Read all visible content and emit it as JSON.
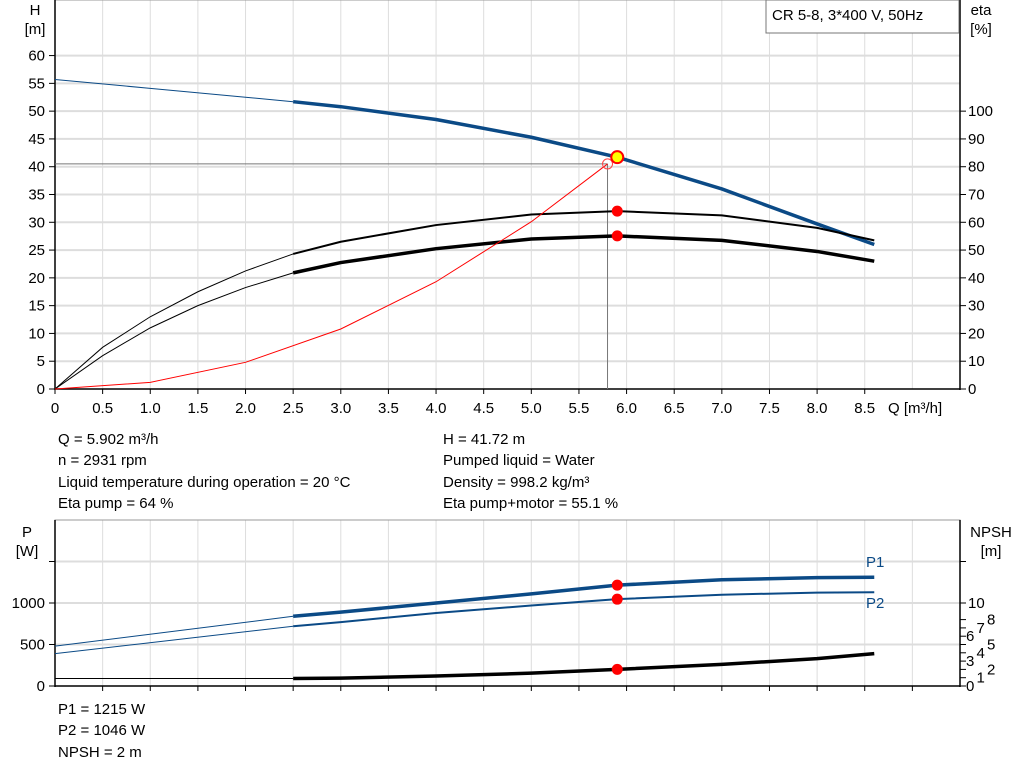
{
  "chart_data": [
    {
      "type": "line",
      "legend": "CR 5-8, 3*400 V, 50Hz",
      "x_axis": {
        "label": "Q [m³/h]",
        "range": [
          0,
          9.5
        ],
        "ticks": [
          0,
          0.5,
          1.0,
          1.5,
          2.0,
          2.5,
          3.0,
          3.5,
          4.0,
          4.5,
          5.0,
          5.5,
          6.0,
          6.5,
          7.0,
          7.5,
          8.0,
          8.5
        ],
        "tick_labels": [
          "0",
          "0.5",
          "1.0",
          "1.5",
          "2.0",
          "2.5",
          "3.0",
          "3.5",
          "4.0",
          "4.5",
          "5.0",
          "5.5",
          "6.0",
          "6.5",
          "7.0",
          "7.5",
          "8.0",
          "8.5"
        ]
      },
      "y_axis_left": {
        "label": "H",
        "unit": "[m]",
        "range": [
          0,
          70
        ],
        "ticks": [
          0,
          5,
          10,
          15,
          20,
          25,
          30,
          35,
          40,
          45,
          50,
          55,
          60
        ]
      },
      "y_axis_right": {
        "label": "eta",
        "unit": "[%]",
        "range": [
          0,
          140
        ],
        "ticks": [
          0,
          10,
          20,
          30,
          40,
          50,
          60,
          70,
          80,
          90,
          100
        ]
      },
      "grid": true,
      "series": [
        {
          "id": "H",
          "axis": "left",
          "color": "#0b4a86",
          "thin_until": 2.5,
          "x": [
            0,
            1,
            2,
            2.5,
            3,
            4,
            5,
            5.902,
            7,
            8,
            8.6
          ],
          "y": [
            55.7,
            54.1,
            52.5,
            51.7,
            50.8,
            48.5,
            45.3,
            41.72,
            36,
            29.7,
            26
          ]
        },
        {
          "id": "eta_pump",
          "axis": "right",
          "color": "#000000",
          "thin_until": 2.5,
          "x": [
            0,
            0.5,
            1,
            1.5,
            2,
            2.5,
            3,
            4,
            5,
            5.902,
            7,
            8,
            8.6
          ],
          "y": [
            0,
            15,
            26,
            35,
            42.5,
            48.6,
            53,
            59,
            62.8,
            64,
            62.5,
            58,
            53.5
          ]
        },
        {
          "id": "eta_pump_motor",
          "axis": "right",
          "color": "#000000",
          "thin_until": 2.5,
          "x": [
            0,
            0.5,
            1,
            1.5,
            2,
            2.5,
            3,
            4,
            5,
            5.902,
            7,
            8,
            8.6
          ],
          "y": [
            0,
            12,
            22,
            30,
            36.5,
            41.8,
            45.5,
            50.5,
            54,
            55.1,
            53.5,
            49.5,
            46
          ]
        },
        {
          "id": "system",
          "axis": "left",
          "color": "#ff0000",
          "x": [
            0,
            1,
            2,
            3,
            4,
            5,
            5.8
          ],
          "y": [
            0,
            1.2,
            4.8,
            10.8,
            19.3,
            30.1,
            40.5
          ]
        }
      ],
      "operating_point": {
        "Q": 5.902,
        "H": 41.72,
        "eta_pump": 64,
        "eta_pump_motor": 55.1
      },
      "system_point": {
        "Q": 5.8,
        "H": 40.5
      }
    },
    {
      "type": "line",
      "x_axis": {
        "range": [
          0,
          9.5
        ]
      },
      "y_axis_left": {
        "label": "P",
        "unit": "[W]",
        "range": [
          0,
          2000
        ],
        "ticks": [
          0,
          500,
          1000,
          1500
        ],
        "tick_labels": [
          "0",
          "500",
          "1000",
          ""
        ]
      },
      "y_axis_right": {
        "label": "NPSH",
        "unit": "[m]",
        "range": [
          0,
          20
        ],
        "ticks": [
          0,
          1,
          2,
          3,
          4,
          5,
          6,
          7,
          8,
          10,
          15
        ],
        "tick_labels": [
          "0",
          "1",
          "2",
          "3",
          "4",
          "5",
          "6",
          "7",
          "8",
          "10",
          ""
        ]
      },
      "grid": true,
      "series": [
        {
          "name": "P1",
          "axis": "left",
          "color": "#0b4a86",
          "thin_until": 2.5,
          "x": [
            0,
            2.5,
            3,
            4,
            5,
            5.902,
            7,
            8,
            8.6
          ],
          "y": [
            480,
            840,
            890,
            1000,
            1110,
            1215,
            1280,
            1305,
            1310
          ]
        },
        {
          "name": "P2",
          "axis": "left",
          "color": "#0b4a86",
          "thin_until": 2.5,
          "x": [
            0,
            2.5,
            3,
            4,
            5,
            5.902,
            7,
            8,
            8.6
          ],
          "y": [
            390,
            720,
            770,
            880,
            970,
            1046,
            1100,
            1125,
            1130
          ]
        },
        {
          "id": "NPSH",
          "axis": "right",
          "color": "#000000",
          "thin_until": 2.5,
          "x": [
            0,
            2.5,
            3,
            4,
            5,
            5.902,
            7,
            8,
            8.6
          ],
          "y": [
            0.9,
            0.9,
            0.95,
            1.2,
            1.55,
            2,
            2.6,
            3.3,
            3.9
          ]
        }
      ],
      "operating_point": {
        "Q": 5.902,
        "P1": 1215,
        "P2": 1046,
        "NPSH": 2
      }
    }
  ],
  "info_top": {
    "left": [
      "Q = 5.902 m³/h",
      "n = 2931 rpm",
      "Liquid temperature during operation = 20 °C",
      "Eta pump = 64 %"
    ],
    "right": [
      "H = 41.72 m",
      "Pumped liquid = Water",
      "Density = 998.2 kg/m³",
      "Eta pump+motor = 55.1 %"
    ]
  },
  "info_bottom": [
    "P1 = 1215 W",
    "P2 = 1046 W",
    "NPSH = 2 m"
  ],
  "colors": {
    "curve_blue": "#0b4a86",
    "marker": "#ff0000",
    "duty_point": "#ffff00",
    "grid": "#d9d9d9"
  }
}
